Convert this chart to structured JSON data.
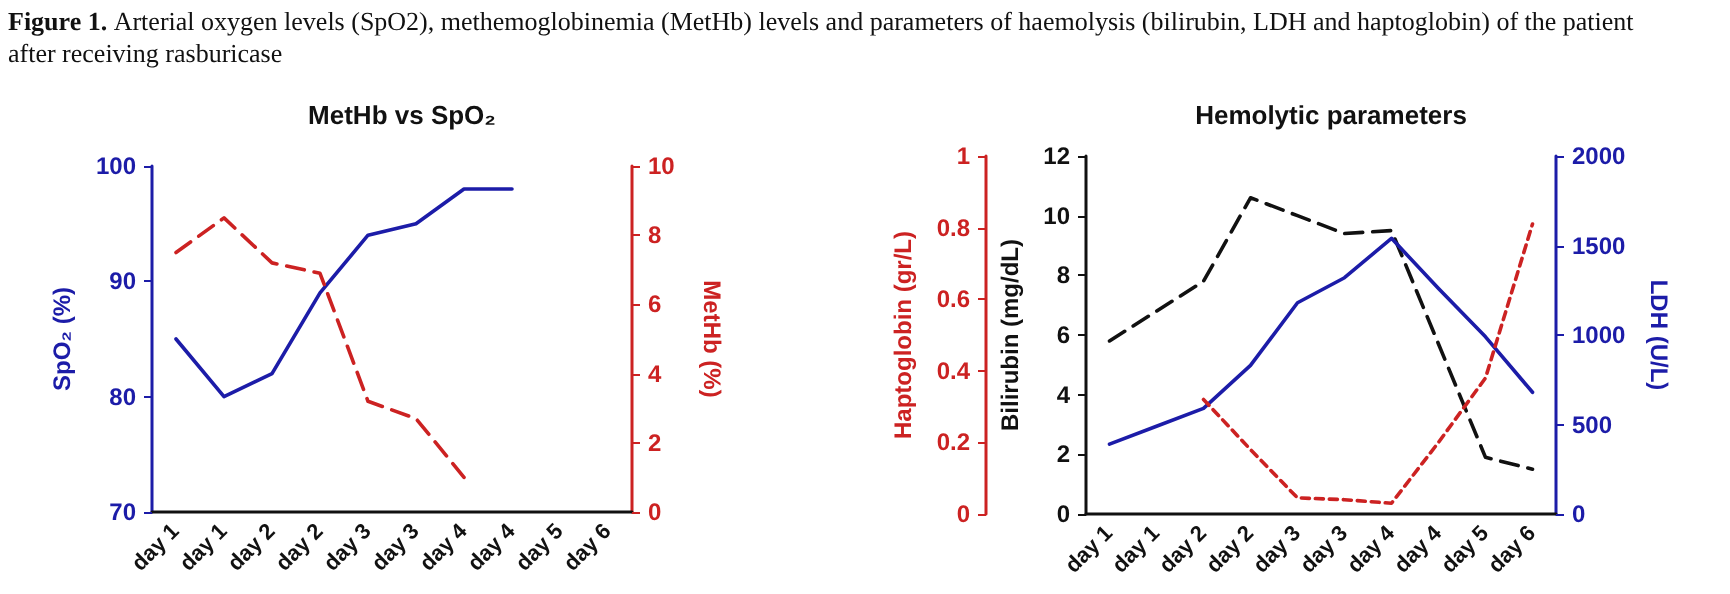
{
  "chart_data": [
    {
      "type": "line",
      "title": "MetHb vs SpO₂",
      "ylabel": "SpO₂ (%)",
      "y2label": "MetHb (%)",
      "annotations": [
        "Figure 1.",
        "Arterial oxygen levels (SpO2), methemoglobinemia (MetHb) levels and parameters of haemolysis (bilirubin, LDH and haptoglobin) of the patient after receiving rasburicase"
      ],
      "categories": [
        "day 1",
        "day 1",
        "day 2",
        "day 2",
        "day 3",
        "day 3",
        "day 4",
        "day 4",
        "day 5",
        "day 6"
      ],
      "ylim": [
        70,
        100
      ],
      "yticks": [
        70,
        80,
        90,
        100
      ],
      "y2lim": [
        0,
        10
      ],
      "y2ticks": [
        0,
        2,
        4,
        6,
        8,
        10
      ],
      "grid": false,
      "marker": "none",
      "series": [
        {
          "color": "#1c1ca8",
          "line_style": "solid",
          "values": [
            85,
            80,
            82,
            89,
            94,
            95,
            98,
            98,
            null,
            null
          ]
        },
        {
          "color": "#cc2222",
          "line_style": "dashed",
          "axis": "y2",
          "values": [
            7.5,
            8.5,
            7.2,
            6.9,
            3.2,
            2.7,
            1.0,
            null,
            null,
            null
          ]
        }
      ]
    },
    {
      "type": "line",
      "title": "Hemolytic parameters",
      "ylabel": "Bilirubin (mg/dL)",
      "y2label": "LDH (U/L)",
      "y3label": "Haptoglobin (gr/L)",
      "categories": [
        "day 1",
        "day 1",
        "day 2",
        "day 2",
        "day 3",
        "day 3",
        "day 4",
        "day 4",
        "day 5",
        "day 6"
      ],
      "ylim": [
        0,
        12
      ],
      "yticks": [
        0,
        2,
        4,
        6,
        8,
        10,
        12
      ],
      "y2lim": [
        0,
        2000
      ],
      "y2ticks": [
        0,
        500,
        1000,
        1500,
        2000
      ],
      "y3lim": [
        0,
        1
      ],
      "y3ticks": [
        0,
        0.2,
        0.4,
        0.6,
        0.8,
        1
      ],
      "grid": false,
      "marker": "none",
      "series": [
        {
          "color": "#111111",
          "line_style": "dashed",
          "values": [
            5.8,
            6.8,
            7.8,
            10.6,
            10.0,
            9.4,
            9.5,
            5.7,
            1.9,
            1.5
          ]
        },
        {
          "color": "#1c1ca8",
          "line_style": "solid",
          "axis": "y2",
          "values": [
            390,
            490,
            590,
            830,
            1180,
            1320,
            1540,
            1260,
            990,
            680
          ]
        },
        {
          "color": "#cc2222",
          "line_style": "dotted",
          "axis": "y3",
          "values": [
            null,
            null,
            0.32,
            0.18,
            0.045,
            0.04,
            0.03,
            0.2,
            0.38,
            0.81
          ]
        }
      ]
    }
  ]
}
